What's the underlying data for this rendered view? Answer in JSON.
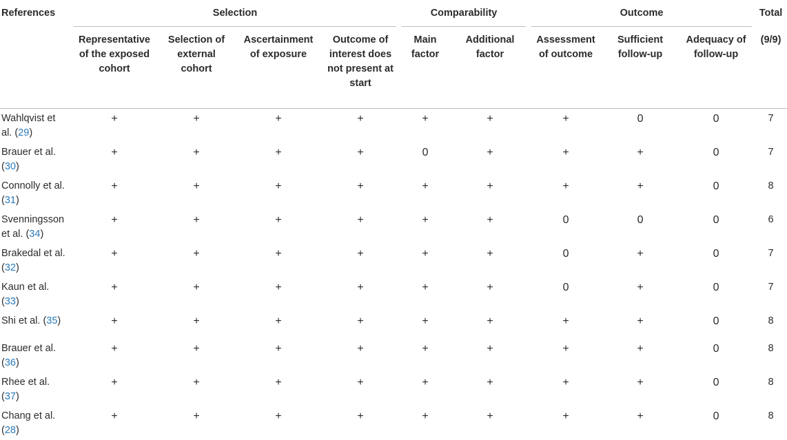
{
  "header": {
    "references": "References",
    "selection": "Selection",
    "comparability": "Comparability",
    "outcome": "Outcome",
    "total": "Total",
    "total_sub": "(9/9)",
    "columns": [
      "Representative of the exposed cohort",
      "Selection of external cohort",
      "Ascertainment of exposure",
      "Outcome of interest does not present at start",
      "Main factor",
      "Additional factor",
      "Assessment of outcome",
      "Sufficient follow-up",
      "Adequacy of follow-up"
    ]
  },
  "rows": [
    {
      "ref": "Wahlqvist et al. (",
      "cite": "29",
      "close": ")",
      "cells": [
        "+",
        "+",
        "+",
        "+",
        "+",
        "+",
        "+",
        "0",
        "0"
      ],
      "total": "7"
    },
    {
      "ref": "Brauer et al. (",
      "cite": "30",
      "close": ")",
      "cells": [
        "+",
        "+",
        "+",
        "+",
        "0",
        "+",
        "+",
        "+",
        "0"
      ],
      "total": "7"
    },
    {
      "ref": "Connolly et al. (",
      "cite": "31",
      "close": ")",
      "cells": [
        "+",
        "+",
        "+",
        "+",
        "+",
        "+",
        "+",
        "+",
        "0"
      ],
      "total": "8"
    },
    {
      "ref": "Svenningsson et al. (",
      "cite": "34",
      "close": ")",
      "cells": [
        "+",
        "+",
        "+",
        "+",
        "+",
        "+",
        "0",
        "0",
        "0"
      ],
      "total": "6"
    },
    {
      "ref": "Brakedal et al. (",
      "cite": "32",
      "close": ")",
      "cells": [
        "+",
        "+",
        "+",
        "+",
        "+",
        "+",
        "0",
        "+",
        "0"
      ],
      "total": "7"
    },
    {
      "ref": "Kaun et al. (",
      "cite": "33",
      "close": ")",
      "cells": [
        "+",
        "+",
        "+",
        "+",
        "+",
        "+",
        "0",
        "+",
        "0"
      ],
      "total": "7"
    },
    {
      "ref": "Shi et al. (",
      "cite": "35",
      "close": ")",
      "cells": [
        "+",
        "+",
        "+",
        "+",
        "+",
        "+",
        "+",
        "+",
        "0"
      ],
      "total": "8"
    },
    {
      "ref": "Brauer et al. (",
      "cite": "36",
      "close": ")",
      "cells": [
        "+",
        "+",
        "+",
        "+",
        "+",
        "+",
        "+",
        "+",
        "0"
      ],
      "total": "8"
    },
    {
      "ref": "Rhee et al. (",
      "cite": "37",
      "close": ")",
      "cells": [
        "+",
        "+",
        "+",
        "+",
        "+",
        "+",
        "+",
        "+",
        "0"
      ],
      "total": "8"
    },
    {
      "ref": "Chang et al. (",
      "cite": "28",
      "close": ")",
      "cells": [
        "+",
        "+",
        "+",
        "+",
        "+",
        "+",
        "+",
        "+",
        "0"
      ],
      "total": "8"
    }
  ]
}
